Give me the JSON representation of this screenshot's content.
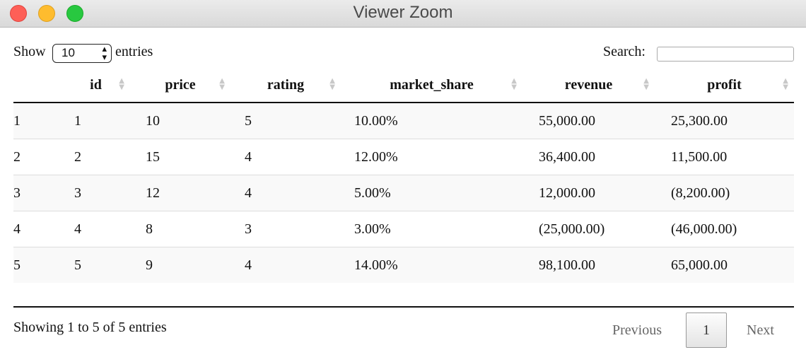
{
  "window": {
    "title": "Viewer Zoom"
  },
  "controls": {
    "show_label": "Show",
    "entries_label": "entries",
    "page_length_value": "10",
    "search_label": "Search:",
    "search_value": ""
  },
  "table": {
    "columns": [
      "",
      "id",
      "price",
      "rating",
      "market_share",
      "revenue",
      "profit"
    ],
    "rows": [
      [
        "1",
        "1",
        "10",
        "5",
        "10.00%",
        "55,000.00",
        "25,300.00"
      ],
      [
        "2",
        "2",
        "15",
        "4",
        "12.00%",
        "36,400.00",
        "11,500.00"
      ],
      [
        "3",
        "3",
        "12",
        "4",
        "5.00%",
        "12,000.00",
        "(8,200.00)"
      ],
      [
        "4",
        "4",
        "8",
        "3",
        "3.00%",
        "(25,000.00)",
        "(46,000.00)"
      ],
      [
        "5",
        "5",
        "9",
        "4",
        "14.00%",
        "98,100.00",
        "65,000.00"
      ]
    ]
  },
  "footer": {
    "info": "Showing 1 to 5 of 5 entries",
    "previous_label": "Previous",
    "current_page": "1",
    "next_label": "Next"
  }
}
